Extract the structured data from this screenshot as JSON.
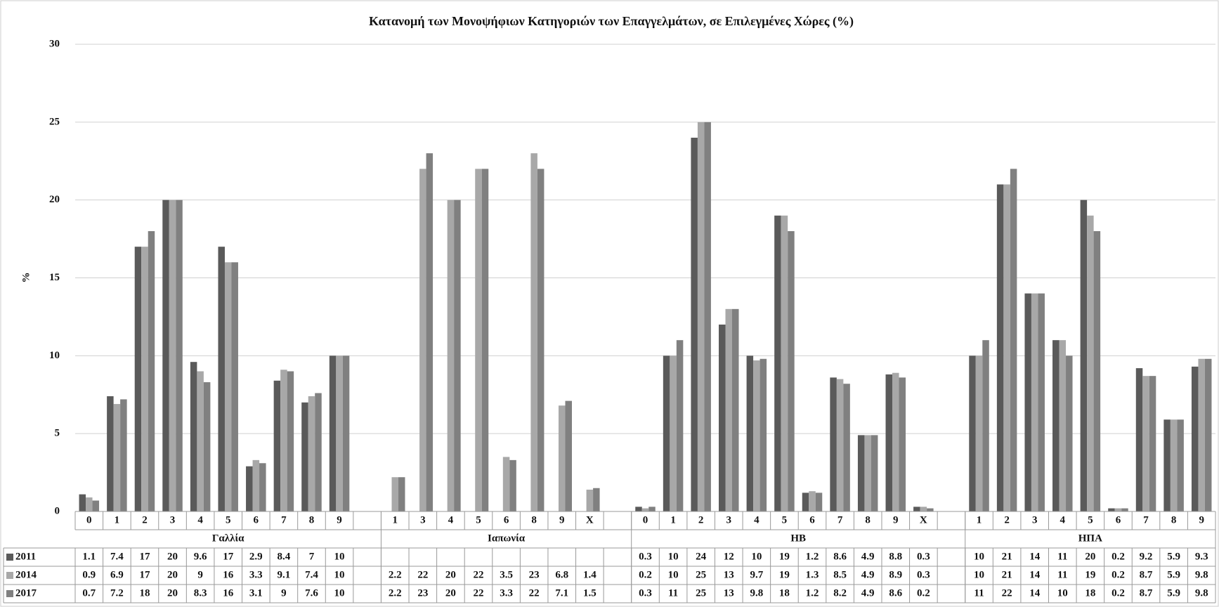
{
  "chart_data": {
    "type": "bar",
    "title": "Κατανομή των Μονοψήφιων Κατηγοριών των Επαγγελμάτων, σε Επιλεγμένες Χώρες (%)",
    "y_label": "%",
    "ylim": [
      0,
      30
    ],
    "yticks": [
      0,
      5,
      10,
      15,
      20,
      25,
      30
    ],
    "grid": true,
    "groups": [
      {
        "name": "Γαλλία",
        "categories": [
          "0",
          "1",
          "2",
          "3",
          "4",
          "5",
          "6",
          "7",
          "8",
          "9"
        ]
      },
      {
        "name": "Ιαπωνία",
        "categories": [
          "1",
          "3",
          "4",
          "5",
          "6",
          "8",
          "9",
          "X"
        ]
      },
      {
        "name": "ΗΒ",
        "categories": [
          "0",
          "1",
          "2",
          "3",
          "4",
          "5",
          "6",
          "7",
          "8",
          "9",
          "X"
        ]
      },
      {
        "name": "ΗΠΑ",
        "categories": [
          "1",
          "2",
          "3",
          "4",
          "5",
          "6",
          "7",
          "8",
          "9"
        ]
      }
    ],
    "series": [
      {
        "name": "2011",
        "color": "#5a5a5a",
        "values": [
          [
            1.1,
            7.4,
            17,
            20,
            9.6,
            17,
            2.9,
            8.4,
            7,
            10
          ],
          [
            null,
            null,
            null,
            null,
            null,
            null,
            null,
            null
          ],
          [
            0.3,
            10,
            24,
            12,
            10,
            19,
            1.2,
            8.6,
            4.9,
            8.8,
            0.3
          ],
          [
            10,
            21,
            14,
            11,
            20,
            0.2,
            9.2,
            5.9,
            9.3
          ]
        ]
      },
      {
        "name": "2014",
        "color": "#a8a8a8",
        "values": [
          [
            0.9,
            6.9,
            17,
            20,
            9,
            16,
            3.3,
            9.1,
            7.4,
            10
          ],
          [
            2.2,
            22,
            20,
            22,
            3.5,
            23,
            6.8,
            1.4
          ],
          [
            0.2,
            10,
            25,
            13,
            9.7,
            19,
            1.3,
            8.5,
            4.9,
            8.9,
            0.3
          ],
          [
            10,
            21,
            14,
            11,
            19,
            0.2,
            8.7,
            5.9,
            9.8
          ]
        ]
      },
      {
        "name": "2017",
        "color": "#808080",
        "values": [
          [
            0.7,
            7.2,
            18,
            20,
            8.3,
            16,
            3.1,
            9,
            7.6,
            10
          ],
          [
            2.2,
            23,
            20,
            22,
            3.3,
            22,
            7.1,
            1.5
          ],
          [
            0.3,
            11,
            25,
            13,
            9.8,
            18,
            1.2,
            8.2,
            4.9,
            8.6,
            0.2
          ],
          [
            11,
            22,
            14,
            10,
            18,
            0.2,
            8.7,
            5.9,
            9.8
          ]
        ]
      }
    ]
  }
}
